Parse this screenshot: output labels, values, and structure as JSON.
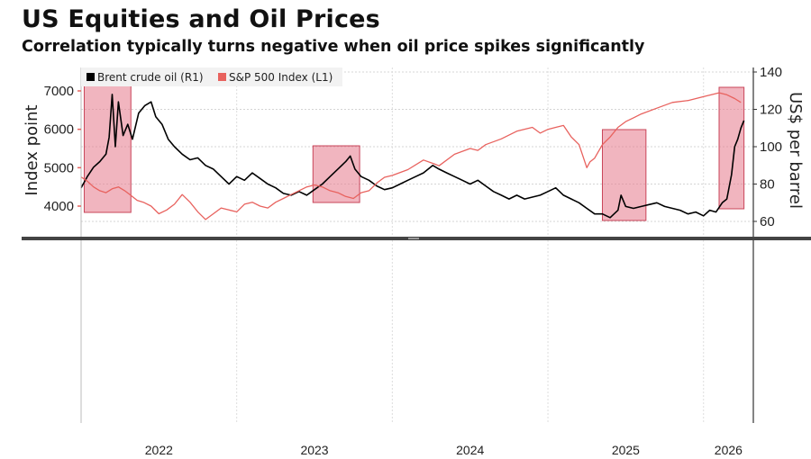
{
  "header": {
    "title": "US Equities and Oil Prices",
    "subtitle": "Correlation typically turns negative when oil price spikes significantly"
  },
  "chart_data": {
    "type": "line",
    "title": "US Equities and Oil Prices",
    "subtitle": "Correlation typically turns negative when oil price spikes significantly",
    "legend": {
      "placement": "top-left",
      "entries": [
        {
          "name": "Brent crude oil (R1)",
          "color": "#000000"
        },
        {
          "name": "S&P 500 Index (L1)",
          "color": "#e8625e"
        }
      ]
    },
    "x_axis": {
      "type": "time",
      "range": [
        2022.0,
        2026.32
      ],
      "tick_labels": [
        "2022",
        "2023",
        "2024",
        "2025",
        "2026"
      ]
    },
    "y_left": {
      "label": "Index point",
      "range": [
        3500,
        7400
      ],
      "ticks": [
        4000,
        5000,
        6000,
        7000
      ]
    },
    "y_right": {
      "label": "US$ per barrel",
      "range": [
        52,
        142
      ],
      "ticks": [
        60,
        80,
        100,
        120,
        140
      ]
    },
    "grid": true,
    "highlight_periods": [
      {
        "start": 2022.02,
        "end": 2022.32
      },
      {
        "start": 2023.49,
        "end": 2023.79
      },
      {
        "start": 2025.35,
        "end": 2025.63
      },
      {
        "start": 2026.1,
        "end": 2026.26
      }
    ],
    "series": [
      {
        "name": "Brent crude oil (R1)",
        "axis": "right",
        "color": "#000000",
        "x": [
          2022.0,
          2022.04,
          2022.08,
          2022.12,
          2022.16,
          2022.18,
          2022.2,
          2022.22,
          2022.24,
          2022.27,
          2022.3,
          2022.33,
          2022.37,
          2022.41,
          2022.45,
          2022.48,
          2022.52,
          2022.56,
          2022.6,
          2022.65,
          2022.7,
          2022.75,
          2022.8,
          2022.85,
          2022.9,
          2022.95,
          2023.0,
          2023.05,
          2023.1,
          2023.15,
          2023.2,
          2023.25,
          2023.3,
          2023.35,
          2023.4,
          2023.45,
          2023.5,
          2023.55,
          2023.6,
          2023.65,
          2023.7,
          2023.73,
          2023.76,
          2023.8,
          2023.85,
          2023.9,
          2023.95,
          2024.0,
          2024.05,
          2024.1,
          2024.15,
          2024.2,
          2024.26,
          2024.3,
          2024.35,
          2024.4,
          2024.45,
          2024.5,
          2024.55,
          2024.6,
          2024.65,
          2024.7,
          2024.75,
          2024.8,
          2024.85,
          2024.9,
          2024.95,
          2025.0,
          2025.05,
          2025.1,
          2025.15,
          2025.2,
          2025.25,
          2025.3,
          2025.35,
          2025.4,
          2025.45,
          2025.47,
          2025.5,
          2025.55,
          2025.6,
          2025.65,
          2025.7,
          2025.75,
          2025.8,
          2025.85,
          2025.9,
          2025.95,
          2026.0,
          2026.04,
          2026.08,
          2026.12,
          2026.15,
          2026.18,
          2026.2,
          2026.22,
          2026.24,
          2026.26
        ],
        "values": [
          78,
          84,
          89,
          92,
          96,
          105,
          128,
          100,
          124,
          106,
          112,
          104,
          118,
          122,
          124,
          116,
          112,
          104,
          100,
          96,
          93,
          94,
          90,
          88,
          84,
          80,
          84,
          82,
          86,
          83,
          80,
          78,
          75,
          74,
          76,
          74,
          77,
          80,
          84,
          88,
          92,
          95,
          88,
          84,
          82,
          79,
          77,
          78,
          80,
          82,
          84,
          86,
          90,
          88,
          86,
          84,
          82,
          80,
          82,
          79,
          76,
          74,
          72,
          74,
          72,
          73,
          74,
          76,
          78,
          74,
          72,
          70,
          67,
          64,
          64,
          62,
          66,
          74,
          68,
          67,
          68,
          69,
          70,
          68,
          67,
          66,
          64,
          65,
          63,
          66,
          65,
          70,
          72,
          85,
          100,
          104,
          110,
          114
        ]
      },
      {
        "name": "S&P 500 Index (L1)",
        "axis": "left",
        "color": "#e8625e",
        "x": [
          2022.0,
          2022.04,
          2022.08,
          2022.12,
          2022.16,
          2022.2,
          2022.24,
          2022.28,
          2022.32,
          2022.36,
          2022.4,
          2022.45,
          2022.5,
          2022.55,
          2022.6,
          2022.65,
          2022.7,
          2022.75,
          2022.8,
          2022.85,
          2022.9,
          2022.95,
          2023.0,
          2023.05,
          2023.1,
          2023.15,
          2023.2,
          2023.25,
          2023.3,
          2023.35,
          2023.4,
          2023.45,
          2023.5,
          2023.55,
          2023.6,
          2023.65,
          2023.7,
          2023.75,
          2023.8,
          2023.85,
          2023.9,
          2023.95,
          2024.0,
          2024.1,
          2024.2,
          2024.27,
          2024.3,
          2024.4,
          2024.5,
          2024.55,
          2024.6,
          2024.7,
          2024.8,
          2024.9,
          2024.95,
          2025.0,
          2025.05,
          2025.1,
          2025.15,
          2025.2,
          2025.25,
          2025.27,
          2025.3,
          2025.35,
          2025.4,
          2025.45,
          2025.5,
          2025.55,
          2025.6,
          2025.7,
          2025.8,
          2025.9,
          2026.0,
          2026.05,
          2026.1,
          2026.15,
          2026.2,
          2026.24
        ],
        "values": [
          4760,
          4650,
          4500,
          4400,
          4350,
          4450,
          4500,
          4400,
          4280,
          4150,
          4100,
          4000,
          3800,
          3900,
          4050,
          4300,
          4100,
          3850,
          3650,
          3800,
          3950,
          3900,
          3850,
          4050,
          4100,
          4000,
          3950,
          4100,
          4200,
          4300,
          4400,
          4500,
          4550,
          4500,
          4400,
          4350,
          4250,
          4200,
          4350,
          4400,
          4600,
          4750,
          4800,
          4950,
          5200,
          5100,
          5050,
          5350,
          5500,
          5450,
          5600,
          5750,
          5950,
          6050,
          5900,
          6000,
          6050,
          6100,
          5800,
          5600,
          5000,
          5150,
          5250,
          5600,
          5800,
          6050,
          6200,
          6300,
          6400,
          6550,
          6700,
          6750,
          6850,
          6900,
          6950,
          6900,
          6800,
          6700
        ]
      }
    ]
  }
}
